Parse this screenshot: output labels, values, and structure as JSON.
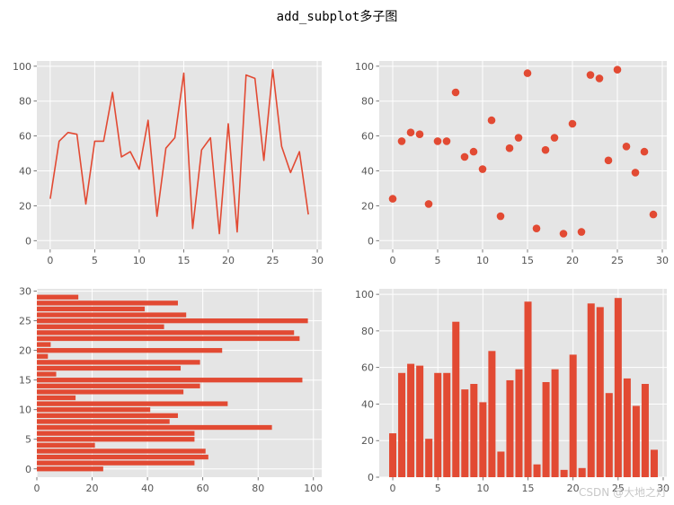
{
  "figure": {
    "title": "add_subplot多子图",
    "watermark": "CSDN @大地之灯"
  },
  "chart_data": [
    {
      "type": "line",
      "x": [
        0,
        1,
        2,
        3,
        4,
        5,
        6,
        7,
        8,
        9,
        10,
        11,
        12,
        13,
        14,
        15,
        16,
        17,
        18,
        19,
        20,
        21,
        22,
        23,
        24,
        25,
        26,
        27,
        28,
        29
      ],
      "values": [
        24,
        57,
        62,
        61,
        21,
        57,
        57,
        85,
        48,
        51,
        41,
        69,
        14,
        53,
        59,
        96,
        7,
        52,
        59,
        4,
        67,
        5,
        95,
        93,
        46,
        98,
        54,
        39,
        51,
        15
      ],
      "xlim": [
        -1.5,
        30.5
      ],
      "ylim": [
        -5,
        103
      ],
      "xticks": [
        0,
        5,
        10,
        15,
        20,
        25,
        30
      ],
      "yticks": [
        0,
        20,
        40,
        60,
        80,
        100
      ],
      "color": "#E24A33",
      "grid": true
    },
    {
      "type": "scatter",
      "x": [
        0,
        1,
        2,
        3,
        4,
        5,
        6,
        7,
        8,
        9,
        10,
        11,
        12,
        13,
        14,
        15,
        16,
        17,
        18,
        19,
        20,
        21,
        22,
        23,
        24,
        25,
        26,
        27,
        28,
        29
      ],
      "values": [
        24,
        57,
        62,
        61,
        21,
        57,
        57,
        85,
        48,
        51,
        41,
        69,
        14,
        53,
        59,
        96,
        7,
        52,
        59,
        4,
        67,
        5,
        95,
        93,
        46,
        98,
        54,
        39,
        51,
        15
      ],
      "xlim": [
        -1.5,
        30.5
      ],
      "ylim": [
        -5,
        103
      ],
      "xticks": [
        0,
        5,
        10,
        15,
        20,
        25,
        30
      ],
      "yticks": [
        0,
        20,
        40,
        60,
        80,
        100
      ],
      "color": "#E24A33",
      "grid": true
    },
    {
      "type": "bar",
      "orientation": "horizontal",
      "x": [
        0,
        1,
        2,
        3,
        4,
        5,
        6,
        7,
        8,
        9,
        10,
        11,
        12,
        13,
        14,
        15,
        16,
        17,
        18,
        19,
        20,
        21,
        22,
        23,
        24,
        25,
        26,
        27,
        28,
        29
      ],
      "values": [
        24,
        57,
        62,
        61,
        21,
        57,
        57,
        85,
        48,
        51,
        41,
        69,
        14,
        53,
        59,
        96,
        7,
        52,
        59,
        4,
        67,
        5,
        95,
        93,
        46,
        98,
        54,
        39,
        51,
        15
      ],
      "xlim": [
        0,
        103
      ],
      "ylim": [
        -1.4,
        30.4
      ],
      "xticks": [
        0,
        20,
        40,
        60,
        80,
        100
      ],
      "yticks": [
        0,
        5,
        10,
        15,
        20,
        25,
        30
      ],
      "color": "#E24A33",
      "grid": true
    },
    {
      "type": "bar",
      "x": [
        0,
        1,
        2,
        3,
        4,
        5,
        6,
        7,
        8,
        9,
        10,
        11,
        12,
        13,
        14,
        15,
        16,
        17,
        18,
        19,
        20,
        21,
        22,
        23,
        24,
        25,
        26,
        27,
        28,
        29
      ],
      "values": [
        24,
        57,
        62,
        61,
        21,
        57,
        57,
        85,
        48,
        51,
        41,
        69,
        14,
        53,
        59,
        96,
        7,
        52,
        59,
        4,
        67,
        5,
        95,
        93,
        46,
        98,
        54,
        39,
        51,
        15
      ],
      "xlim": [
        -1.5,
        30.4
      ],
      "ylim": [
        0,
        103
      ],
      "xticks": [
        0,
        5,
        10,
        15,
        20,
        25,
        30
      ],
      "yticks": [
        0,
        20,
        40,
        60,
        80,
        100
      ],
      "color": "#E24A33",
      "grid": true
    }
  ]
}
